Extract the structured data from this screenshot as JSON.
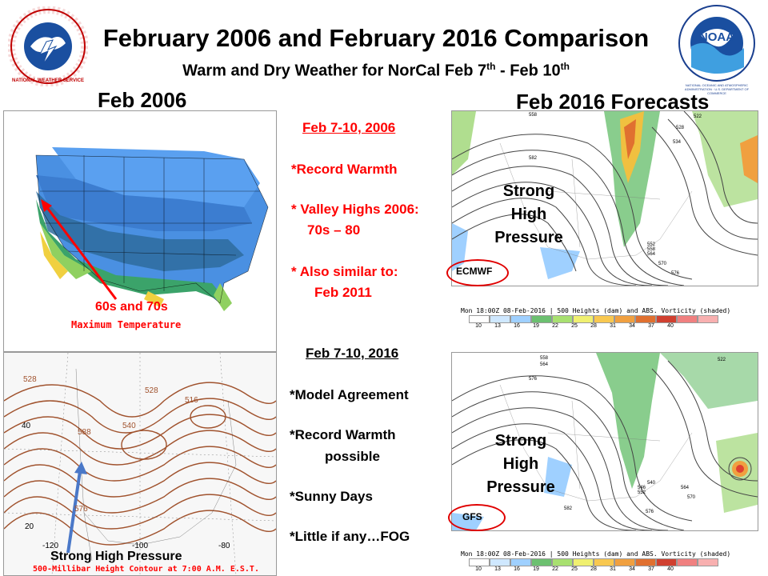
{
  "header": {
    "title": "February 2006 and February 2016 Comparison",
    "subtitle_main": "Warm and Dry Weather for NorCal Feb 7",
    "subtitle_sup1": "th",
    "subtitle_mid": " - Feb 10",
    "subtitle_sup2": "th",
    "nws_logo_text": "NATIONAL WEATHER SERVICE",
    "noaa_logo_text": "NOAA",
    "noaa_ring_text": "NATIONAL OCEANIC AND ATMOSPHERIC ADMINISTRATION · U.S. DEPARTMENT OF COMMERCE"
  },
  "left": {
    "heading": "Feb 2006",
    "temp_map": {
      "annotation": "60s and 70s",
      "caption": "Maximum Temperature"
    },
    "height_map": {
      "annotation": "Strong High Pressure",
      "caption": "500-Millibar Height Contour at 7:00 A.M. E.S.T.",
      "labels": [
        "528",
        "540",
        "40",
        "-120",
        "-100",
        "-80",
        "20",
        "576",
        "588",
        "516",
        "528"
      ]
    }
  },
  "middle": {
    "block2006": {
      "heading": "Feb 7-10, 2006",
      "item1": "*Record Warmth",
      "item2a": "* Valley Highs 2006:",
      "item2b": "70s – 80",
      "item3a": "* Also similar to:",
      "item3b": "Feb 2011"
    },
    "block2016": {
      "heading": "Feb 7-10, 2016",
      "item1": "*Model Agreement",
      "item2a": "*Record Warmth",
      "item2b": "possible",
      "item3": "*Sunny Days",
      "item4": "*Little if any…FOG"
    }
  },
  "right": {
    "heading": "Feb 2016 Forecasts",
    "ecmwf": {
      "label": "ECMWF",
      "hp_line1": "Strong",
      "hp_line2": "High",
      "hp_line3": "Pressure",
      "caption": "Mon 18:00Z 08-Feb-2016 | 500 Heights (dam) and ABS. Vorticity (shaded)",
      "contours": [
        "558",
        "582",
        "522",
        "528",
        "534",
        "552",
        "558",
        "564",
        "570",
        "576"
      ]
    },
    "gfs": {
      "label": "GFS",
      "hp_line1": "Strong",
      "hp_line2": "High",
      "hp_line3": "Pressure",
      "caption": "Mon 18:00Z 08-Feb-2016 | 500 Heights (dam) and ABS. Vorticity (shaded)",
      "contours": [
        "558",
        "564",
        "576",
        "522",
        "540",
        "546",
        "552",
        "564",
        "570",
        "576",
        "582"
      ]
    },
    "colorbar_ticks": [
      "10",
      "13",
      "16",
      "19",
      "22",
      "25",
      "28",
      "31",
      "34",
      "37",
      "40"
    ],
    "colorbar_colors": [
      "#ffffff",
      "#cfe8ff",
      "#9fd0ff",
      "#6cc070",
      "#a8e070",
      "#f0f070",
      "#f8c850",
      "#f0a040",
      "#e07030",
      "#d04030",
      "#f08080",
      "#f8b0b0"
    ]
  },
  "colors": {
    "accent_red": "#ff0000",
    "arrow_blue": "#4a78c8",
    "contour_brown": "#a0522d"
  }
}
